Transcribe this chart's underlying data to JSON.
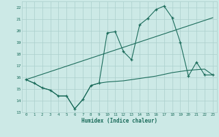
{
  "xlabel": "Humidex (Indice chaleur)",
  "bg_color": "#cce9e6",
  "grid_color": "#aacfcc",
  "line_color": "#1a6b5a",
  "x_min": -0.5,
  "x_max": 23.5,
  "y_min": 13,
  "y_max": 22.5,
  "line1_x": [
    0,
    1,
    2,
    3,
    4,
    5,
    6,
    7,
    8,
    9,
    10,
    11,
    12,
    13,
    14,
    15,
    16,
    17,
    18,
    19,
    20,
    21,
    22,
    23
  ],
  "line1_y": [
    15.8,
    15.5,
    15.1,
    14.9,
    14.4,
    14.4,
    13.3,
    14.1,
    15.3,
    15.5,
    19.8,
    19.9,
    18.2,
    17.5,
    20.5,
    21.05,
    21.8,
    22.1,
    21.1,
    19.0,
    16.1,
    17.3,
    16.2,
    16.2
  ],
  "line2_x": [
    0,
    23
  ],
  "line2_y": [
    15.8,
    21.1
  ],
  "line3_x": [
    0,
    1,
    2,
    3,
    4,
    5,
    6,
    7,
    8,
    9,
    10,
    11,
    12,
    13,
    14,
    15,
    16,
    17,
    18,
    19,
    20,
    21,
    22,
    23
  ],
  "line3_y": [
    15.8,
    15.5,
    15.1,
    14.9,
    14.4,
    14.4,
    13.3,
    14.1,
    15.3,
    15.5,
    15.6,
    15.65,
    15.7,
    15.8,
    15.9,
    16.0,
    16.1,
    16.25,
    16.4,
    16.5,
    16.6,
    16.65,
    16.7,
    16.2
  ],
  "yticks": [
    13,
    14,
    15,
    16,
    17,
    18,
    19,
    20,
    21,
    22
  ],
  "xticks": [
    0,
    1,
    2,
    3,
    4,
    5,
    6,
    7,
    8,
    9,
    10,
    11,
    12,
    13,
    14,
    15,
    16,
    17,
    18,
    19,
    20,
    21,
    22,
    23
  ]
}
